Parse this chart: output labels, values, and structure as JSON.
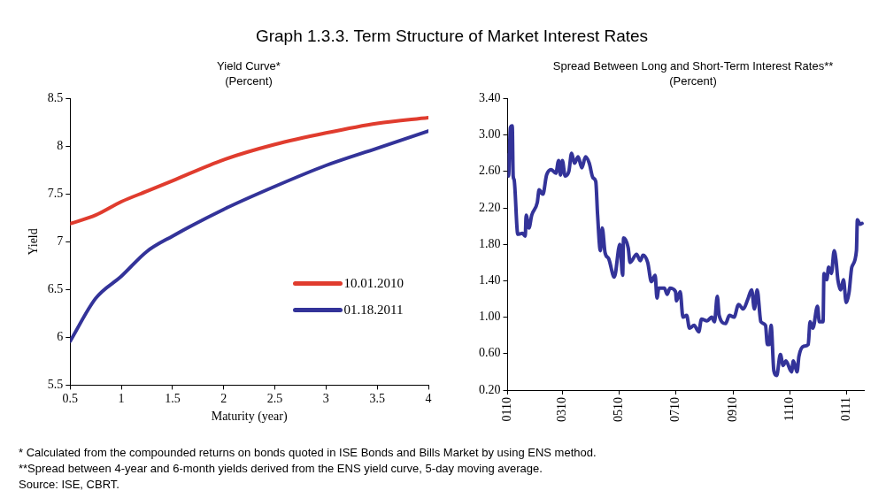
{
  "chart_data": [
    {
      "type": "line",
      "title": "Graph 1.3.3. Term Structure of Market Interest Rates",
      "subtitle": "Yield Curve*\n(Percent)",
      "xlabel": "Maturity (year)",
      "ylabel": "Yield",
      "x": [
        0.5,
        0.75,
        1,
        1.25,
        1.5,
        2,
        2.5,
        3,
        3.5,
        4
      ],
      "series": [
        {
          "name": "10.01.2010",
          "color": "#e03c2e",
          "values": [
            7.19,
            7.28,
            7.42,
            7.53,
            7.64,
            7.86,
            8.02,
            8.14,
            8.24,
            8.3
          ]
        },
        {
          "name": "01.18.2011",
          "color": "#333399",
          "values": [
            5.96,
            6.41,
            6.64,
            6.9,
            7.06,
            7.34,
            7.58,
            7.8,
            7.98,
            8.16
          ]
        }
      ],
      "xlim": [
        0.5,
        4
      ],
      "xticks": [
        0.5,
        1,
        1.5,
        2,
        2.5,
        3,
        3.5,
        4
      ],
      "ylim": [
        5.5,
        8.5
      ],
      "yticks": [
        5.5,
        6,
        6.5,
        7,
        7.5,
        8,
        8.5
      ],
      "legend": "bottom right"
    },
    {
      "type": "line",
      "subtitle": "Spread Between Long and Short-Term Interest Rates**\n(Percent)",
      "x": [
        "2010-01-01",
        "2010-01-02",
        "2010-01-04",
        "2010-01-06",
        "2010-01-07",
        "2010-01-08",
        "2010-01-12",
        "2010-01-17",
        "2010-01-20",
        "2010-01-21",
        "2010-01-24",
        "2010-01-27",
        "2010-02-02",
        "2010-02-04",
        "2010-02-08",
        "2010-02-12",
        "2010-02-17",
        "2010-02-22",
        "2010-02-25",
        "2010-02-27",
        "2010-03-01",
        "2010-03-04",
        "2010-03-08",
        "2010-03-11",
        "2010-03-14",
        "2010-03-18",
        "2010-03-22",
        "2010-03-26",
        "2010-03-30",
        "2010-04-03",
        "2010-04-06",
        "2010-04-08",
        "2010-04-11",
        "2010-04-13",
        "2010-04-16",
        "2010-04-20",
        "2010-04-26",
        "2010-05-02",
        "2010-05-05",
        "2010-05-06",
        "2010-05-11",
        "2010-05-13",
        "2010-05-20",
        "2010-05-24",
        "2010-05-27",
        "2010-06-01",
        "2010-06-05",
        "2010-06-09",
        "2010-06-11",
        "2010-06-13",
        "2010-06-19",
        "2010-06-22",
        "2010-06-25",
        "2010-07-01",
        "2010-07-02",
        "2010-07-06",
        "2010-07-09",
        "2010-07-13",
        "2010-07-16",
        "2010-07-21",
        "2010-07-26",
        "2010-07-29",
        "2010-08-04",
        "2010-08-09",
        "2010-08-12",
        "2010-08-15",
        "2010-08-17",
        "2010-08-24",
        "2010-08-28",
        "2010-09-02",
        "2010-09-07",
        "2010-09-12",
        "2010-09-17",
        "2010-09-21",
        "2010-09-24",
        "2010-09-27",
        "2010-10-01",
        "2010-10-06",
        "2010-10-08",
        "2010-10-10",
        "2010-10-12",
        "2010-10-15",
        "2010-10-18",
        "2010-10-22",
        "2010-10-25",
        "2010-10-28",
        "2010-11-03",
        "2010-11-05",
        "2010-11-09",
        "2010-11-11",
        "2010-11-16",
        "2010-11-21",
        "2010-11-23",
        "2010-11-26",
        "2010-12-01",
        "2010-12-03",
        "2010-12-07",
        "2010-12-08",
        "2010-12-11",
        "2010-12-13",
        "2010-12-16",
        "2010-12-19",
        "2010-12-21",
        "2010-12-23",
        "2010-12-26",
        "2010-12-29",
        "2011-01-01",
        "2011-01-04",
        "2011-01-07",
        "2011-01-12",
        "2011-01-13",
        "2011-01-16",
        "2011-01-18"
      ],
      "series": [
        {
          "color": "#333399",
          "values": [
            2.78,
            2.55,
            3.08,
            3.1,
            2.55,
            2.51,
            1.91,
            1.92,
            1.89,
            2.12,
            1.98,
            2.12,
            2.26,
            2.4,
            2.35,
            2.56,
            2.62,
            2.58,
            2.72,
            2.56,
            2.72,
            2.55,
            2.6,
            2.8,
            2.69,
            2.76,
            2.64,
            2.76,
            2.69,
            2.53,
            2.49,
            2.12,
            1.73,
            1.98,
            1.71,
            1.64,
            1.44,
            1.8,
            1.46,
            1.87,
            1.76,
            1.6,
            1.69,
            1.62,
            1.68,
            1.6,
            1.39,
            1.46,
            1.21,
            1.32,
            1.32,
            1.25,
            1.32,
            1.28,
            1.18,
            1.28,
            1.0,
            1.02,
            0.88,
            0.91,
            0.84,
            0.98,
            0.96,
            1.0,
            0.95,
            1.23,
            1.02,
            0.93,
            1.02,
            1.0,
            1.14,
            1.09,
            1.2,
            1.3,
            1.09,
            1.3,
            0.95,
            0.91,
            0.7,
            0.7,
            0.91,
            0.41,
            0.36,
            0.59,
            0.47,
            0.52,
            0.4,
            0.52,
            0.4,
            0.57,
            0.68,
            0.7,
            0.95,
            0.88,
            1.12,
            0.95,
            0.95,
            1.48,
            1.41,
            1.55,
            1.48,
            1.73,
            1.62,
            1.41,
            1.3,
            1.41,
            1.16,
            1.27,
            1.55,
            1.73,
            2.07,
            2.02,
            2.03
          ]
        }
      ],
      "xlim": [
        "2010-01-01",
        "2011-01-20"
      ],
      "xticks": [
        {
          "value": "2010-01-01",
          "label": "0110"
        },
        {
          "value": "2010-03-01",
          "label": "0310"
        },
        {
          "value": "2010-05-01",
          "label": "0510"
        },
        {
          "value": "2010-07-01",
          "label": "0710"
        },
        {
          "value": "2010-09-01",
          "label": "0910"
        },
        {
          "value": "2010-11-01",
          "label": "1110"
        },
        {
          "value": "2011-01-01",
          "label": "0111"
        }
      ],
      "ylim": [
        0.2,
        3.4
      ],
      "yticks": [
        {
          "value": 0.2,
          "label": "0.20"
        },
        {
          "value": 0.6,
          "label": "0.60"
        },
        {
          "value": 1.0,
          "label": "1.00"
        },
        {
          "value": 1.4,
          "label": "1.40"
        },
        {
          "value": 1.8,
          "label": "1.80"
        },
        {
          "value": 2.2,
          "label": "2.20"
        },
        {
          "value": 2.6,
          "label": "2.60"
        },
        {
          "value": 3.0,
          "label": "3.00"
        },
        {
          "value": 3.4,
          "label": "3.40"
        }
      ],
      "annotations": [
        "* Calculated from the compounded returns on bonds quoted in ISE Bonds and Bills Market by using ENS method.",
        "**Spread between 4-year and 6-month yields derived from the ENS yield curve, 5-day moving average.",
        "Source: ISE, CBRT."
      ]
    }
  ]
}
